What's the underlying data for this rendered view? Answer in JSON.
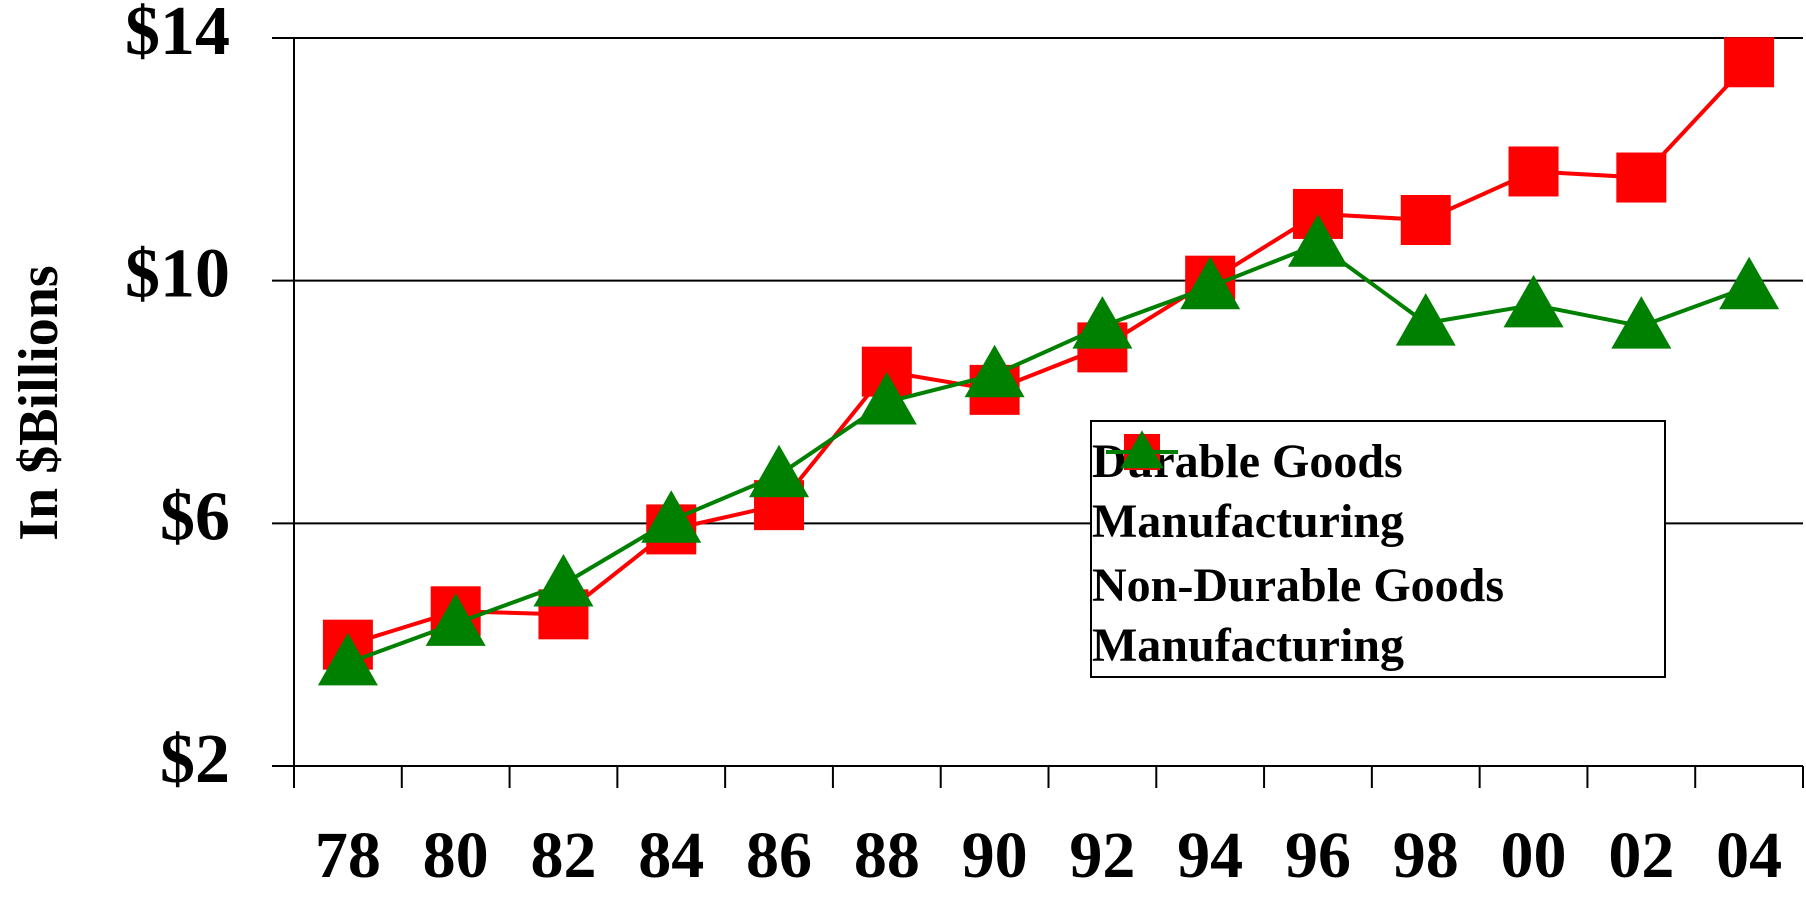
{
  "chart_data": {
    "type": "line",
    "y_label": "In $Billions",
    "categories": [
      "78",
      "80",
      "82",
      "84",
      "86",
      "88",
      "90",
      "92",
      "94",
      "96",
      "98",
      "00",
      "02",
      "04"
    ],
    "series": [
      {
        "name": "Durable Goods Manufacturing",
        "color": "#ff0000",
        "marker": "square",
        "values": [
          4.0,
          4.55,
          4.5,
          5.9,
          6.3,
          8.5,
          8.2,
          8.9,
          10.0,
          11.1,
          11.0,
          11.8,
          11.7,
          13.6
        ]
      },
      {
        "name": "Non-Durable Goods Manufacturing",
        "color": "#008000",
        "marker": "triangle",
        "values": [
          3.7,
          4.35,
          5.0,
          6.05,
          6.8,
          8.0,
          8.45,
          9.25,
          9.9,
          10.6,
          9.3,
          9.6,
          9.25,
          9.9
        ]
      }
    ],
    "ylim": [
      2,
      14
    ],
    "yticks": [
      {
        "value": 2,
        "label": "$2"
      },
      {
        "value": 6,
        "label": "$6"
      },
      {
        "value": 10,
        "label": "$10"
      },
      {
        "value": 14,
        "label": "$14"
      }
    ],
    "grid": true
  }
}
